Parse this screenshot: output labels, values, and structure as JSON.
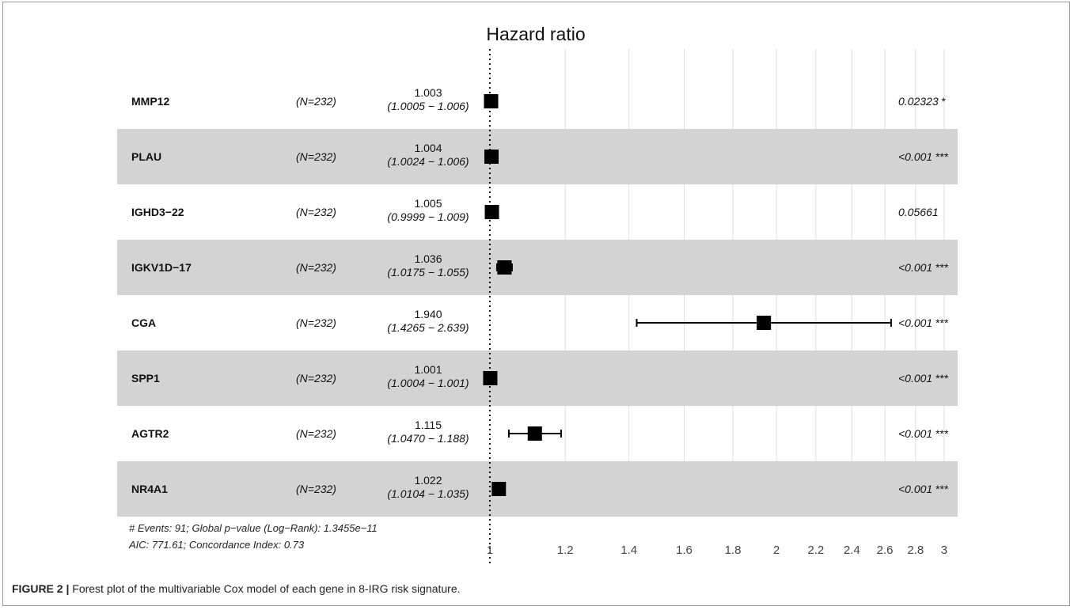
{
  "chart_data": {
    "type": "forest",
    "title": "Hazard ratio",
    "x_scale": "log",
    "xlim": [
      0.97,
      3.1
    ],
    "x_ticks": [
      "1",
      "1.2",
      "1.4",
      "1.6",
      "1.8",
      "2",
      "2.2",
      "2.4",
      "2.6",
      "2.8",
      "3"
    ],
    "rows": [
      {
        "gene": "MMP12",
        "n": "(N=232)",
        "hr_label": "1.003",
        "ci_label": "(1.0005 − 1.006)",
        "hr": 1.003,
        "lo": 1.0005,
        "hi": 1.006,
        "p_label": "0.02323",
        "stars": "*",
        "shaded": false
      },
      {
        "gene": "PLAU",
        "n": "(N=232)",
        "hr_label": "1.004",
        "ci_label": "(1.0024 − 1.006)",
        "hr": 1.004,
        "lo": 1.0024,
        "hi": 1.006,
        "p_label": "<0.001",
        "stars": "***",
        "shaded": true
      },
      {
        "gene": "IGHD3−22",
        "n": "(N=232)",
        "hr_label": "1.005",
        "ci_label": "(0.9999 − 1.009)",
        "hr": 1.005,
        "lo": 0.9999,
        "hi": 1.009,
        "p_label": "0.05661",
        "stars": "",
        "shaded": false
      },
      {
        "gene": "IGKV1D−17",
        "n": "(N=232)",
        "hr_label": "1.036",
        "ci_label": "(1.0175 − 1.055)",
        "hr": 1.036,
        "lo": 1.0175,
        "hi": 1.055,
        "p_label": "<0.001",
        "stars": "***",
        "shaded": true
      },
      {
        "gene": "CGA",
        "n": "(N=232)",
        "hr_label": "1.940",
        "ci_label": "(1.4265 − 2.639)",
        "hr": 1.94,
        "lo": 1.4265,
        "hi": 2.639,
        "p_label": "<0.001",
        "stars": "***",
        "shaded": false
      },
      {
        "gene": "SPP1",
        "n": "(N=232)",
        "hr_label": "1.001",
        "ci_label": "(1.0004 − 1.001)",
        "hr": 1.001,
        "lo": 1.0004,
        "hi": 1.001,
        "p_label": "<0.001",
        "stars": "***",
        "shaded": true
      },
      {
        "gene": "AGTR2",
        "n": "(N=232)",
        "hr_label": "1.115",
        "ci_label": "(1.0470 − 1.188)",
        "hr": 1.115,
        "lo": 1.047,
        "hi": 1.188,
        "p_label": "<0.001",
        "stars": "***",
        "shaded": false
      },
      {
        "gene": "NR4A1",
        "n": "(N=232)",
        "hr_label": "1.022",
        "ci_label": "(1.0104 − 1.035)",
        "hr": 1.022,
        "lo": 1.0104,
        "hi": 1.035,
        "p_label": "<0.001",
        "stars": "***",
        "shaded": true
      }
    ],
    "footnote_line1": "# Events: 91; Global p−value (Log−Rank): 1.3455e−11",
    "footnote_line2": "AIC: 771.61; Concordance Index: 0.73"
  },
  "caption": {
    "label": "FIGURE 2 |",
    "text": " Forest plot of the multivariable Cox model of each gene in 8-IRG risk signature."
  },
  "colors": {
    "shade": "#d3d3d3",
    "grid": "#dedede",
    "marker": "#000000"
  }
}
